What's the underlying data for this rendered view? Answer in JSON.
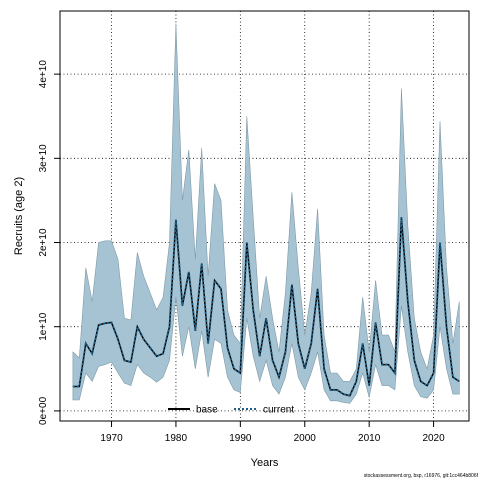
{
  "chart_data": {
    "type": "line",
    "xlabel": "Years",
    "ylabel": "Recruits (age 2)",
    "xlim": [
      1962,
      2025.5
    ],
    "ylim": [
      -1200000000.0,
      47500000000.0
    ],
    "xticks": [
      1970,
      1980,
      1990,
      2000,
      2010,
      2020
    ],
    "xtick_labels": [
      "1970",
      "1980",
      "1990",
      "2000",
      "2010",
      "2020"
    ],
    "yticks": [
      0,
      10000000000,
      20000000000,
      30000000000,
      40000000000
    ],
    "ytick_labels": [
      "0e+00",
      "1e+10",
      "2e+10",
      "3e+10",
      "4e+10"
    ],
    "grid": true,
    "legend_position": "bottom-center",
    "legend": [
      {
        "label": "base",
        "style": "solid",
        "color": "#000000"
      },
      {
        "label": "current",
        "style": "dotted",
        "color": "#1f5f86"
      }
    ],
    "band_color": "#a5c3d2",
    "years": [
      1964,
      1965,
      1966,
      1967,
      1968,
      1969,
      1970,
      1971,
      1972,
      1973,
      1974,
      1975,
      1976,
      1977,
      1978,
      1979,
      1980,
      1981,
      1982,
      1983,
      1984,
      1985,
      1986,
      1987,
      1988,
      1989,
      1990,
      1991,
      1992,
      1993,
      1994,
      1995,
      1996,
      1997,
      1998,
      1999,
      2000,
      2001,
      2002,
      2003,
      2004,
      2005,
      2006,
      2007,
      2008,
      2009,
      2010,
      2011,
      2012,
      2013,
      2014,
      2015,
      2016,
      2017,
      2018,
      2019,
      2020,
      2021,
      2022,
      2023,
      2024
    ],
    "series": [
      {
        "name": "base",
        "values": [
          2900000000.0,
          2900000000.0,
          8000000000.0,
          6800000000.0,
          10200000000.0,
          10400000000.0,
          10500000000.0,
          8500000000.0,
          6000000000.0,
          5800000000.0,
          10000000000.0,
          8500000000.0,
          7500000000.0,
          6500000000.0,
          6800000000.0,
          10000000000.0,
          22700000000.0,
          12500000000.0,
          16500000000.0,
          9500000000.0,
          17500000000.0,
          8000000000.0,
          15500000000.0,
          14500000000.0,
          7500000000.0,
          5000000000.0,
          4500000000.0,
          20000000000.0,
          12000000000.0,
          6500000000.0,
          11000000000.0,
          6000000000.0,
          4000000000.0,
          7000000000.0,
          15000000000.0,
          8000000000.0,
          5000000000.0,
          8000000000.0,
          14500000000.0,
          5000000000.0,
          2500000000.0,
          2500000000.0,
          2000000000.0,
          1800000000.0,
          3500000000.0,
          8000000000.0,
          3000000000.0,
          10500000000.0,
          5500000000.0,
          5500000000.0,
          4500000000.0,
          23000000000.0,
          13000000000.0,
          6000000000.0,
          3500000000.0,
          3000000000.0,
          4500000000.0,
          20000000000.0,
          10000000000.0,
          4000000000.0,
          3500000000.0
        ]
      },
      {
        "name": "current",
        "values": [
          2900000000.0,
          2900000000.0,
          8000000000.0,
          6800000000.0,
          10200000000.0,
          10400000000.0,
          10500000000.0,
          8500000000.0,
          6000000000.0,
          5800000000.0,
          10000000000.0,
          8500000000.0,
          7500000000.0,
          6500000000.0,
          6800000000.0,
          10000000000.0,
          22700000000.0,
          12500000000.0,
          16500000000.0,
          9500000000.0,
          17500000000.0,
          8000000000.0,
          15500000000.0,
          14500000000.0,
          7500000000.0,
          5000000000.0,
          4500000000.0,
          20000000000.0,
          12000000000.0,
          6500000000.0,
          11000000000.0,
          6000000000.0,
          4000000000.0,
          7000000000.0,
          15000000000.0,
          8000000000.0,
          5000000000.0,
          8000000000.0,
          14500000000.0,
          5000000000.0,
          2500000000.0,
          2500000000.0,
          2000000000.0,
          1800000000.0,
          3500000000.0,
          8000000000.0,
          3000000000.0,
          10500000000.0,
          5500000000.0,
          5500000000.0,
          4500000000.0,
          23000000000.0,
          13000000000.0,
          6000000000.0,
          3500000000.0,
          3000000000.0,
          4500000000.0,
          20000000000.0,
          10000000000.0,
          4000000000.0,
          3500000000.0
        ]
      }
    ],
    "band_upper": [
      7000000000.0,
      6300000000.0,
      17000000000.0,
      13000000000.0,
      20000000000.0,
      20200000000.0,
      20200000000.0,
      18000000000.0,
      11000000000.0,
      10800000000.0,
      18800000000.0,
      16000000000.0,
      14000000000.0,
      12000000000.0,
      13500000000.0,
      20000000000.0,
      46000000000.0,
      25000000000.0,
      31000000000.0,
      18000000000.0,
      31200000000.0,
      16000000000.0,
      27000000000.0,
      25000000000.0,
      12000000000.0,
      9000000000.0,
      8000000000.0,
      35000000000.0,
      23000000000.0,
      11000000000.0,
      16000000000.0,
      11000000000.0,
      7000000000.0,
      14000000000.0,
      26000000000.0,
      17000000000.0,
      9000000000.0,
      14000000000.0,
      24000000000.0,
      9000000000.0,
      4500000000.0,
      4500000000.0,
      3500000000.0,
      3500000000.0,
      5000000000.0,
      13500000000.0,
      7000000000.0,
      15500000000.0,
      9000000000.0,
      9000000000.0,
      7000000000.0,
      38300000000.0,
      22000000000.0,
      11000000000.0,
      7000000000.0,
      5000000000.0,
      9000000000.0,
      34400000000.0,
      17000000000.0,
      8000000000.0,
      13000000000.0
    ],
    "band_lower": [
      1300000000.0,
      1300000000.0,
      4500000000.0,
      3500000000.0,
      5300000000.0,
      5500000000.0,
      5800000000.0,
      4500000000.0,
      3300000000.0,
      3000000000.0,
      5500000000.0,
      4500000000.0,
      4000000000.0,
      3400000000.0,
      4000000000.0,
      6000000000.0,
      13500000000.0,
      6500000000.0,
      10000000000.0,
      5000000000.0,
      9500000000.0,
      4000000000.0,
      8500000000.0,
      8000000000.0,
      4000000000.0,
      2500000000.0,
      2200000000.0,
      11000000000.0,
      6500000000.0,
      3500000000.0,
      6000000000.0,
      3000000000.0,
      2000000000.0,
      4000000000.0,
      8000000000.0,
      4000000000.0,
      2500000000.0,
      4500000000.0,
      7000000000.0,
      2500000000.0,
      1200000000.0,
      1200000000.0,
      1000000000.0,
      900000000.0,
      2000000000.0,
      4500000000.0,
      1600000000.0,
      5500000000.0,
      3000000000.0,
      3000000000.0,
      2500000000.0,
      12500000000.0,
      7000000000.0,
      3000000000.0,
      1700000000.0,
      1500000000.0,
      2500000000.0,
      10000000000.0,
      5000000000.0,
      2000000000.0,
      2000000000.0
    ]
  },
  "footer_text": "stockassessment.org, bsp, r16976, git:1cc464b806f"
}
